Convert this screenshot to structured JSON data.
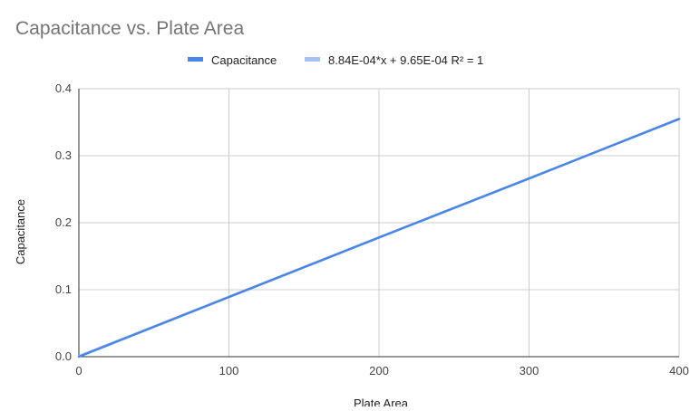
{
  "chart_data": {
    "type": "line",
    "title": "Capacitance vs. Plate Area",
    "xlabel": "Plate Area",
    "ylabel": "Capacitance",
    "xlim": [
      0,
      400
    ],
    "ylim": [
      0,
      0.4
    ],
    "x_ticks": [
      "0",
      "100",
      "200",
      "300",
      "400"
    ],
    "y_ticks": [
      "0.0",
      "0.1",
      "0.2",
      "0.3",
      "0.4"
    ],
    "x_tick_values": [
      0,
      100,
      200,
      300,
      400
    ],
    "y_tick_values": [
      0,
      0.1,
      0.2,
      0.3,
      0.4
    ],
    "grid": true,
    "legend_position": "top",
    "series": [
      {
        "name": "Capacitance",
        "color": "#4a86e8",
        "x": [
          0,
          100,
          200,
          250,
          300,
          400
        ],
        "y": [
          0,
          0.089,
          0.178,
          0.222,
          0.266,
          0.355
        ]
      }
    ],
    "trendline": {
      "label": "8.84E-04*x + 9.65E-04 R² = 1",
      "color": "#a4c2f4",
      "slope": 0.000884,
      "intercept": 0.000965
    }
  }
}
